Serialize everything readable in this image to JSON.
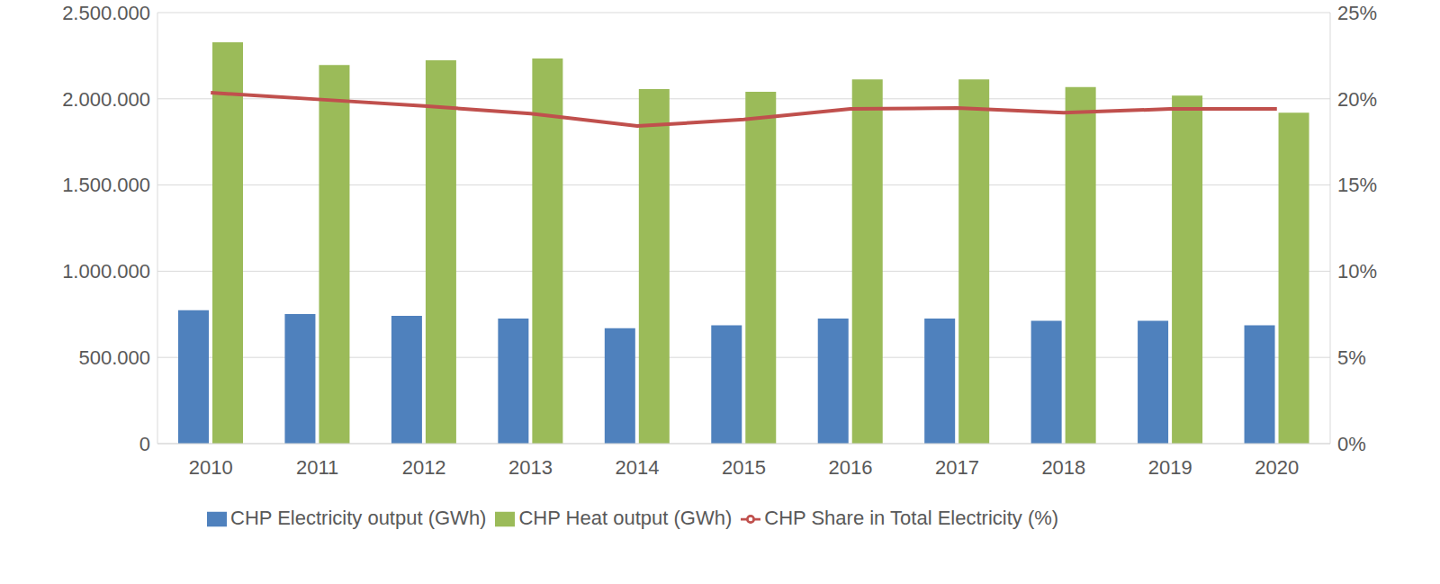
{
  "chart_data": {
    "type": "bar",
    "categories": [
      "2010",
      "2011",
      "2012",
      "2013",
      "2014",
      "2015",
      "2016",
      "2017",
      "2018",
      "2019",
      "2020"
    ],
    "series": [
      {
        "name": "CHP Electricity output (GWh)",
        "type": "bar",
        "color": "#4f81bd",
        "values": [
          774000,
          752000,
          741000,
          725000,
          669000,
          686000,
          725000,
          725000,
          713000,
          713000,
          686000
        ]
      },
      {
        "name": "CHP Heat output (GWh)",
        "type": "bar",
        "color": "#9bbb59",
        "values": [
          2328000,
          2196000,
          2223000,
          2234000,
          2057000,
          2041000,
          2113000,
          2113000,
          2068000,
          2019000,
          1919000
        ]
      },
      {
        "name": "CHP Share in Total Electricity (%)",
        "type": "line",
        "axis": "y2",
        "color": "#c0504d",
        "values": [
          20.35,
          19.97,
          19.58,
          19.14,
          18.42,
          18.8,
          19.41,
          19.47,
          19.19,
          19.41,
          19.41
        ]
      }
    ],
    "ylim": [
      0,
      2500000
    ],
    "yticks": [
      {
        "value": 0,
        "label": "0"
      },
      {
        "value": 500000,
        "label": "500.000"
      },
      {
        "value": 1000000,
        "label": "1.000.000"
      },
      {
        "value": 1500000,
        "label": "1.500.000"
      },
      {
        "value": 2000000,
        "label": "2.000.000"
      },
      {
        "value": 2500000,
        "label": "2.500.000"
      }
    ],
    "y2lim": [
      0,
      25
    ],
    "y2ticks": [
      {
        "value": 0,
        "label": "0%"
      },
      {
        "value": 5,
        "label": "5%"
      },
      {
        "value": 10,
        "label": "10%"
      },
      {
        "value": 15,
        "label": "15%"
      },
      {
        "value": 20,
        "label": "20%"
      },
      {
        "value": 25,
        "label": "25%"
      }
    ],
    "grid": true
  }
}
